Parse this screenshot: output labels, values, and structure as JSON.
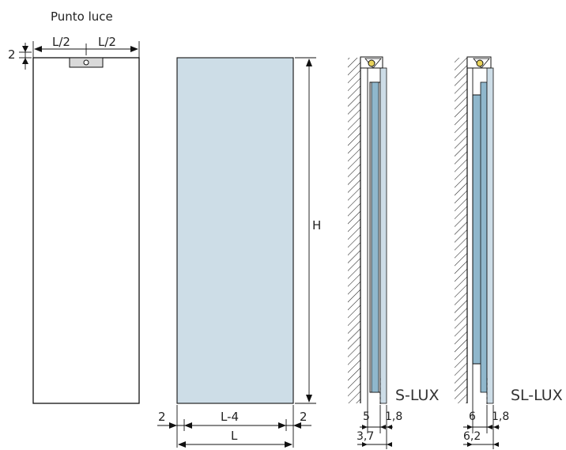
{
  "labels": {
    "punto_luce": "Punto luce",
    "half_left": "L/2",
    "half_right": "L/2",
    "top_offset": "2",
    "height": "H",
    "left_margin": "2",
    "right_margin": "2",
    "inner_width": "L-4",
    "width": "L",
    "s_lux": {
      "name": "S-LUX",
      "dim_a": "5",
      "dim_b": "1,8",
      "dim_c": "3,7"
    },
    "sl_lux": {
      "name": "SL-LUX",
      "dim_a": "6",
      "dim_b": "1,8",
      "dim_c": "6,2"
    }
  },
  "colors": {
    "panel_fill": "#cddde7",
    "profile_fill": "#8fb7cc",
    "light_fill": "#d9d9d9",
    "lamp_yellow": "#e8d25a",
    "outline": "#111111"
  }
}
